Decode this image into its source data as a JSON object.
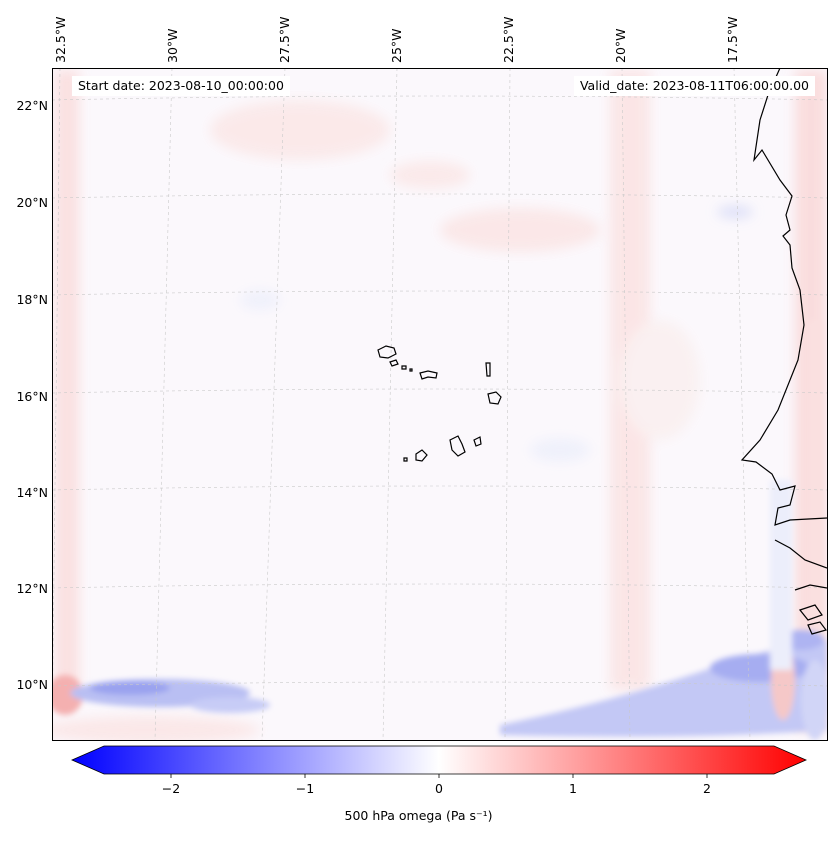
{
  "map": {
    "title_start": "Start date: 2023-08-10_00:00:00",
    "title_valid": "Valid_date: 2023-08-11T06:00:00.00",
    "longitude_labels": [
      "32.5°W",
      "30°W",
      "27.5°W",
      "25°W",
      "22.5°W",
      "20°W",
      "17.5°W"
    ],
    "latitude_labels": [
      "22°N",
      "20°N",
      "18°N",
      "16°N",
      "14°N",
      "12°N",
      "10°N"
    ],
    "field": "500 hPa omega",
    "features": [
      "Cape Verde islands",
      "West African coastline"
    ]
  },
  "colorbar": {
    "label": "500 hPa omega (Pa s⁻¹)",
    "tick_labels": [
      "−2",
      "−1",
      "0",
      "1",
      "2"
    ],
    "min": -2.7,
    "max": 2.7,
    "colors": {
      "low": "#0000ff",
      "mid": "#ffffff",
      "high": "#ff0000"
    }
  }
}
